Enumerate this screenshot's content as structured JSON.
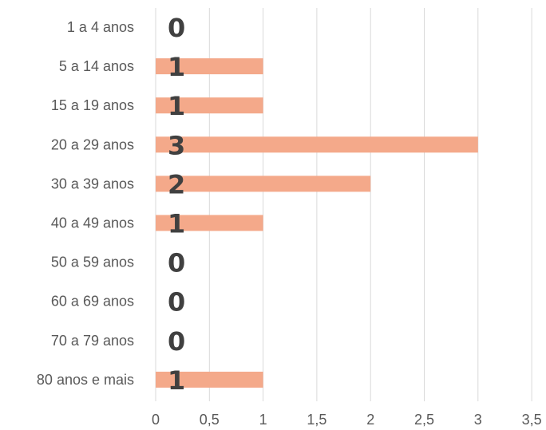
{
  "chart_data": {
    "type": "bar",
    "orientation": "horizontal",
    "categories": [
      "1 a 4 anos",
      "5 a 14 anos",
      "15 a 19 anos",
      "20 a 29 anos",
      "30 a 39 anos",
      "40 a 49 anos",
      "50 a 59 anos",
      "60 a 69 anos",
      "70 a 79 anos",
      "80 anos e mais"
    ],
    "values": [
      0,
      1,
      1,
      3,
      2,
      1,
      0,
      0,
      0,
      1
    ],
    "data_labels": [
      "0",
      "1",
      "1",
      "3",
      "2",
      "1",
      "0",
      "0",
      "0",
      "1"
    ],
    "x_ticks": [
      "0",
      "0,5",
      "1",
      "1,5",
      "2",
      "2,5",
      "3",
      "3,5"
    ],
    "xlim": [
      0,
      3.5
    ],
    "grid": "vertical",
    "title": "",
    "xlabel": "",
    "ylabel": "",
    "bar_color": "#F4A98A",
    "grid_color": "#D9D9D9",
    "label_color": "#404040",
    "tick_color": "#595959"
  }
}
